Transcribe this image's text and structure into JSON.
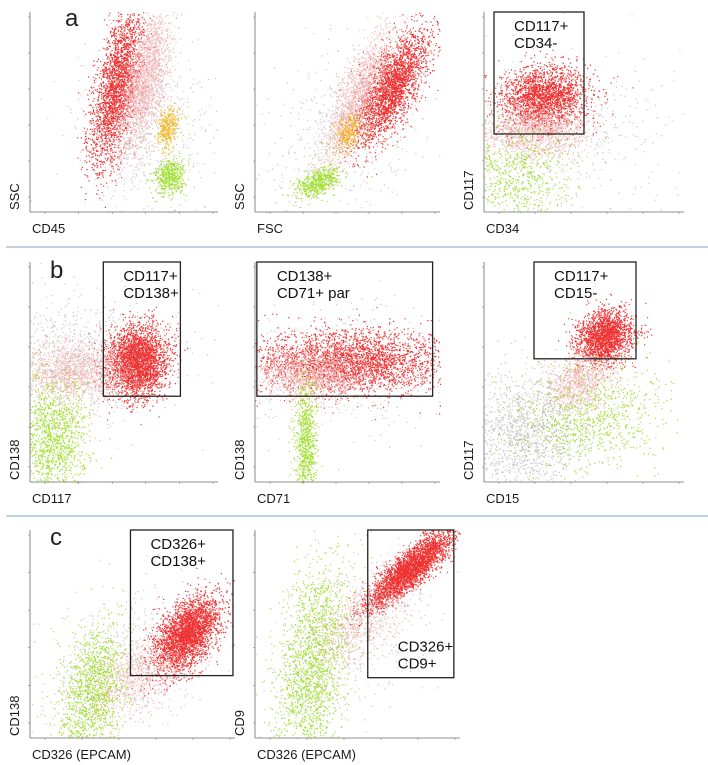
{
  "colors": {
    "gated": "#ee1c1c",
    "other": "#f4b7b8",
    "granulocyte": "#f5b517",
    "lymphocyte": "#9ade22",
    "background": "#9a9a9a",
    "gate": "#222222",
    "separator": "#7ea3cc",
    "axis": "#6a6a6a"
  },
  "separators": [
    "row-a",
    "row-b"
  ],
  "chart_data": [
    {
      "type": "scatter",
      "panel": "a",
      "letter": "a",
      "xlabel": "CD45",
      "ylabel": "SSC",
      "xlim": [
        0,
        100
      ],
      "ylim": [
        0,
        100
      ],
      "gate": null,
      "populations": [
        {
          "name": "gated",
          "color": "red",
          "cx": 46,
          "cy": 62,
          "sx": 7,
          "sy": 20,
          "rho": 0.6,
          "n": 2400
        },
        {
          "name": "other",
          "color": "pink",
          "cx": 61,
          "cy": 66,
          "sx": 7,
          "sy": 18,
          "rho": 0.6,
          "n": 1900
        },
        {
          "name": "granulocyte",
          "color": "orange",
          "cx": 73,
          "cy": 42,
          "sx": 3,
          "sy": 5,
          "rho": 0.2,
          "n": 350
        },
        {
          "name": "lymphocyte",
          "color": "green",
          "cx": 74,
          "cy": 18,
          "sx": 4,
          "sy": 4,
          "rho": 0.1,
          "n": 500
        },
        {
          "name": "background",
          "color": "grey",
          "cx": 60,
          "cy": 40,
          "sx": 20,
          "sy": 24,
          "rho": 0.0,
          "n": 600
        }
      ]
    },
    {
      "type": "scatter",
      "panel": "a",
      "letter": "",
      "xlabel": "FSC",
      "ylabel": "SSC",
      "xlim": [
        0,
        100
      ],
      "ylim": [
        0,
        100
      ],
      "gate": null,
      "populations": [
        {
          "name": "gated",
          "color": "red",
          "cx": 73,
          "cy": 62,
          "sx": 10,
          "sy": 14,
          "rho": 0.7,
          "n": 2600
        },
        {
          "name": "other",
          "color": "pink",
          "cx": 55,
          "cy": 58,
          "sx": 10,
          "sy": 18,
          "rho": 0.8,
          "n": 1400
        },
        {
          "name": "granulocyte",
          "color": "orange",
          "cx": 50,
          "cy": 40,
          "sx": 4,
          "sy": 5,
          "rho": 0.3,
          "n": 280
        },
        {
          "name": "lymphocyte",
          "color": "green",
          "cx": 34,
          "cy": 15,
          "sx": 6,
          "sy": 4,
          "rho": 0.5,
          "n": 550
        },
        {
          "name": "background",
          "color": "grey",
          "cx": 50,
          "cy": 40,
          "sx": 25,
          "sy": 25,
          "rho": 0.4,
          "n": 500
        }
      ]
    },
    {
      "type": "scatter",
      "panel": "a",
      "letter": "",
      "xlabel": "CD34",
      "ylabel": "CD117",
      "xlim": [
        0,
        100
      ],
      "ylim": [
        0,
        100
      ],
      "gate": {
        "x0": 5,
        "x1": 50,
        "y0": 39,
        "y1": 100,
        "lines": [
          "CD117+",
          "CD34-"
        ],
        "label_pos": "top"
      },
      "populations": [
        {
          "name": "gated",
          "color": "red",
          "cx": 30,
          "cy": 57,
          "sx": 11,
          "sy": 8,
          "rho": 0.1,
          "n": 2200
        },
        {
          "name": "other",
          "color": "pink",
          "cx": 25,
          "cy": 40,
          "sx": 14,
          "sy": 7,
          "rho": 0.0,
          "n": 1200
        },
        {
          "name": "lymphocyte",
          "color": "green",
          "cx": 15,
          "cy": 18,
          "sx": 14,
          "sy": 13,
          "rho": 0.0,
          "n": 700
        },
        {
          "name": "background",
          "color": "grey",
          "cx": 35,
          "cy": 35,
          "sx": 30,
          "sy": 22,
          "rho": 0.0,
          "n": 400
        }
      ]
    },
    {
      "type": "scatter",
      "panel": "b",
      "letter": "b",
      "xlabel": "CD117",
      "ylabel": "CD138",
      "xlim": [
        0,
        100
      ],
      "ylim": [
        0,
        100
      ],
      "gate": {
        "x0": 39,
        "x1": 80,
        "y0": 39,
        "y1": 100,
        "lines": [
          "CD117+",
          "CD138+"
        ],
        "label_pos": "top"
      },
      "populations": [
        {
          "name": "gated",
          "color": "red",
          "cx": 57,
          "cy": 55,
          "sx": 8,
          "sy": 8,
          "rho": 0.05,
          "n": 3000
        },
        {
          "name": "other",
          "color": "pink",
          "cx": 25,
          "cy": 50,
          "sx": 16,
          "sy": 7,
          "rho": 0.0,
          "n": 1500
        },
        {
          "name": "lymphocyte",
          "color": "green",
          "cx": 12,
          "cy": 20,
          "sx": 9,
          "sy": 14,
          "rho": 0.0,
          "n": 1300
        },
        {
          "name": "background",
          "color": "grey",
          "cx": 30,
          "cy": 58,
          "sx": 25,
          "sy": 14,
          "rho": 0.0,
          "n": 700
        }
      ]
    },
    {
      "type": "scatter",
      "panel": "b",
      "letter": "",
      "xlabel": "CD71",
      "ylabel": "CD138",
      "xlim": [
        0,
        100
      ],
      "ylim": [
        0,
        100
      ],
      "gate": {
        "x0": 1,
        "x1": 96,
        "y0": 39,
        "y1": 100,
        "lines": [
          "CD138+",
          "CD71+ par"
        ],
        "label_pos": "top"
      },
      "populations": [
        {
          "name": "gated",
          "color": "red",
          "cx": 50,
          "cy": 55,
          "sx": 27,
          "sy": 7,
          "rho": 0.0,
          "n": 3000
        },
        {
          "name": "other",
          "color": "pink",
          "cx": 30,
          "cy": 49,
          "sx": 16,
          "sy": 6,
          "rho": 0.0,
          "n": 1200
        },
        {
          "name": "lymphocyte",
          "color": "green",
          "cx": 27,
          "cy": 18,
          "sx": 3,
          "sy": 14,
          "rho": 0.0,
          "n": 800
        },
        {
          "name": "background",
          "color": "grey",
          "cx": 50,
          "cy": 52,
          "sx": 32,
          "sy": 16,
          "rho": 0.0,
          "n": 400
        }
      ]
    },
    {
      "type": "scatter",
      "panel": "b",
      "letter": "",
      "xlabel": "CD15",
      "ylabel": "CD117",
      "xlim": [
        0,
        100
      ],
      "ylim": [
        0,
        100
      ],
      "gate": {
        "x0": 25,
        "x1": 76,
        "y0": 56,
        "y1": 100,
        "lines": [
          "CD117+",
          "CD15-"
        ],
        "label_pos": "top"
      },
      "populations": [
        {
          "name": "gated",
          "color": "red",
          "cx": 60,
          "cy": 66,
          "sx": 7,
          "sy": 6,
          "rho": 0.2,
          "n": 2000
        },
        {
          "name": "other",
          "color": "pink",
          "cx": 47,
          "cy": 45,
          "sx": 9,
          "sy": 7,
          "rho": 0.3,
          "n": 900
        },
        {
          "name": "lymphocyte",
          "color": "green",
          "cx": 52,
          "cy": 30,
          "sx": 20,
          "sy": 12,
          "rho": 0.1,
          "n": 900
        },
        {
          "name": "background",
          "color": "grey",
          "cx": 20,
          "cy": 22,
          "sx": 14,
          "sy": 14,
          "rho": 0.0,
          "n": 1300
        }
      ]
    },
    {
      "type": "scatter",
      "panel": "c",
      "letter": "c",
      "xlabel": "CD326 (EPCAM)",
      "ylabel": "CD138",
      "xlim": [
        0,
        100
      ],
      "ylim": [
        0,
        100
      ],
      "gate": {
        "x0": 49,
        "x1": 99,
        "y0": 30,
        "y1": 100,
        "lines": [
          "CD326+",
          "CD138+"
        ],
        "label_pos": "top"
      },
      "populations": [
        {
          "name": "gated",
          "color": "red",
          "cx": 76,
          "cy": 50,
          "sx": 8,
          "sy": 9,
          "rho": 0.5,
          "n": 3000
        },
        {
          "name": "other",
          "color": "pink",
          "cx": 52,
          "cy": 30,
          "sx": 14,
          "sy": 10,
          "rho": 0.5,
          "n": 900
        },
        {
          "name": "lymphocyte",
          "color": "green",
          "cx": 30,
          "cy": 22,
          "sx": 8,
          "sy": 16,
          "rho": 0.3,
          "n": 1300
        },
        {
          "name": "background",
          "color": "grey",
          "cx": 45,
          "cy": 38,
          "sx": 22,
          "sy": 18,
          "rho": 0.3,
          "n": 400
        }
      ]
    },
    {
      "type": "scatter",
      "panel": "c",
      "letter": "",
      "xlabel": "CD326 (EPCAM)",
      "ylabel": "CD9",
      "xlim": [
        0,
        100
      ],
      "ylim": [
        0,
        100
      ],
      "gate": {
        "x0": 55,
        "x1": 97,
        "y0": 29,
        "y1": 100,
        "lines": [
          "CD326+",
          "CD9+"
        ],
        "label_pos": "bottom"
      },
      "populations": [
        {
          "name": "gated",
          "color": "red",
          "cx": 75,
          "cy": 81,
          "sx": 10,
          "sy": 9,
          "rho": 0.85,
          "n": 3200
        },
        {
          "name": "other",
          "color": "pink",
          "cx": 50,
          "cy": 55,
          "sx": 13,
          "sy": 13,
          "rho": 0.6,
          "n": 700
        },
        {
          "name": "lymphocyte",
          "color": "green",
          "cx": 28,
          "cy": 35,
          "sx": 9,
          "sy": 26,
          "rho": 0.4,
          "n": 1800
        },
        {
          "name": "background",
          "color": "grey",
          "cx": 45,
          "cy": 50,
          "sx": 22,
          "sy": 22,
          "rho": 0.5,
          "n": 400
        }
      ]
    }
  ]
}
